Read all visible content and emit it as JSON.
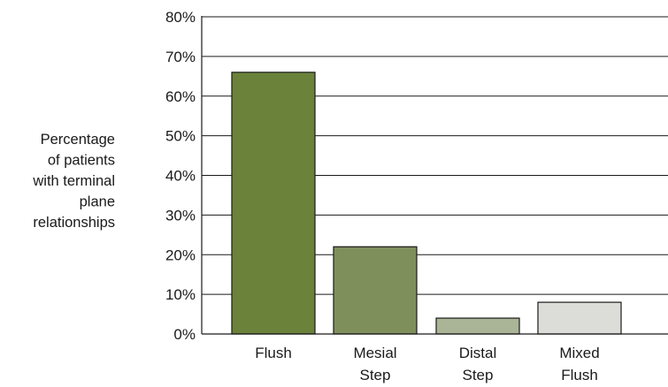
{
  "chart_data": {
    "type": "bar",
    "categories": [
      [
        "Flush"
      ],
      [
        "Mesial",
        "Step"
      ],
      [
        "Distal",
        "Step"
      ],
      [
        "Mixed",
        "Flush"
      ]
    ],
    "values": [
      66,
      22,
      4,
      8
    ],
    "ylabel": [
      "Percentage",
      "of patients",
      "with terminal",
      "plane",
      "relationships"
    ],
    "ylim": [
      0,
      80
    ],
    "yticks": [
      "0%",
      "10%",
      "20%",
      "30%",
      "40%",
      "50%",
      "60%",
      "70%",
      "80%"
    ],
    "grid": true,
    "legend": "none"
  },
  "colors": {
    "bars": [
      "#6b823b",
      "#7f8f5c",
      "#aab496",
      "#dcdcd8"
    ],
    "bar_stroke": "#1a1a1a",
    "axis": "#1a1a1a"
  }
}
